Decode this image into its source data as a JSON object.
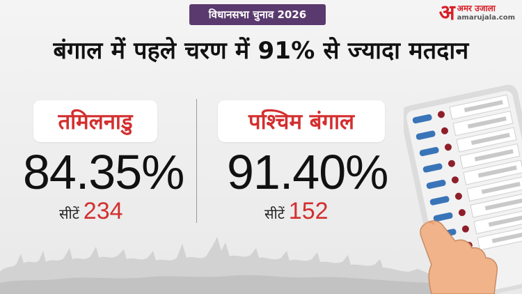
{
  "top_tag": "विधानसभा चुनाव 2026",
  "logo": {
    "mark": "अ",
    "hindi": "अमर उजाला",
    "domain": "amarujala.com"
  },
  "headline": "बंगाल में पहले चरण में 91% से ज्यादा मतदान",
  "states": [
    {
      "name": "तमिलनाडु",
      "percent": "84.35%",
      "seats_label": "सीटें",
      "seats": "234"
    },
    {
      "name": "पश्चिम बंगाल",
      "percent": "91.40%",
      "seats_label": "सीटें",
      "seats": "152"
    }
  ],
  "colors": {
    "accent_red": "#d32f2f",
    "tag_purple": "#5a3a6e",
    "brand_red": "#d81f26"
  }
}
